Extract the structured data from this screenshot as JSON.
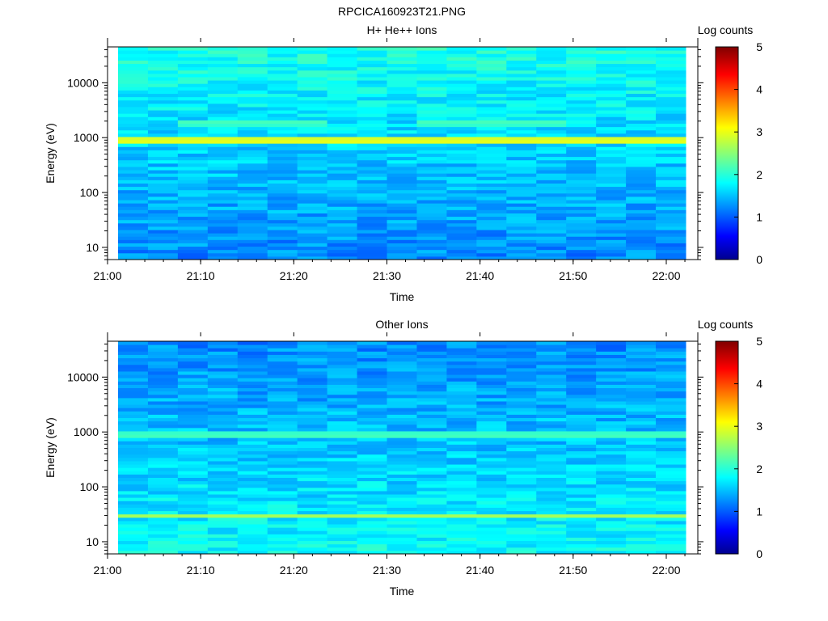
{
  "figure_title": "RPCICA160923T21.PNG",
  "chart_data": [
    {
      "type": "heatmap",
      "title": "H+ He++ Ions",
      "xlabel": "Time",
      "ylabel": "Energy (eV)",
      "y_scale": "log",
      "ylim": [
        6,
        45000
      ],
      "x_ticks": [
        "21:00",
        "21:10",
        "21:20",
        "21:30",
        "21:40",
        "21:50",
        "22:00"
      ],
      "y_ticks": [
        "10",
        "100",
        "1000",
        "10000"
      ],
      "colorbar": {
        "label": "Log counts",
        "range": [
          0,
          5
        ],
        "ticks": [
          "0",
          "1",
          "2",
          "3",
          "4",
          "5"
        ]
      },
      "time_range": [
        "21:01",
        "22:02"
      ],
      "features": [
        {
          "energy_ev": 900,
          "log_counts": 3.2,
          "note_band": "strong band"
        },
        {
          "energy_ev": 1850,
          "log_counts": 2.4,
          "time_span": [
            "21:07",
            "21:25"
          ]
        },
        {
          "energy_ev": 1850,
          "log_counts": 2.4,
          "time_span": [
            "21:33",
            "21:48"
          ]
        }
      ],
      "background": {
        "high_energy_log_counts": 2.0,
        "low_energy_log_counts": 1.3
      }
    },
    {
      "type": "heatmap",
      "title": "Other Ions",
      "xlabel": "Time",
      "ylabel": "Energy (eV)",
      "y_scale": "log",
      "ylim": [
        6,
        45000
      ],
      "x_ticks": [
        "21:00",
        "21:10",
        "21:20",
        "21:30",
        "21:40",
        "21:50",
        "22:00"
      ],
      "y_ticks": [
        "10",
        "100",
        "1000",
        "10000"
      ],
      "colorbar": {
        "label": "Log counts",
        "range": [
          0,
          5
        ],
        "ticks": [
          "0",
          "1",
          "2",
          "3",
          "4",
          "5"
        ]
      },
      "time_range": [
        "21:01",
        "22:02"
      ],
      "features": [
        {
          "energy_ev": 900,
          "log_counts": 2.4
        },
        {
          "energy_ev": 30,
          "log_counts": 2.7
        }
      ],
      "background": {
        "high_energy_log_counts": 1.3,
        "low_energy_log_counts": 1.9
      }
    }
  ]
}
